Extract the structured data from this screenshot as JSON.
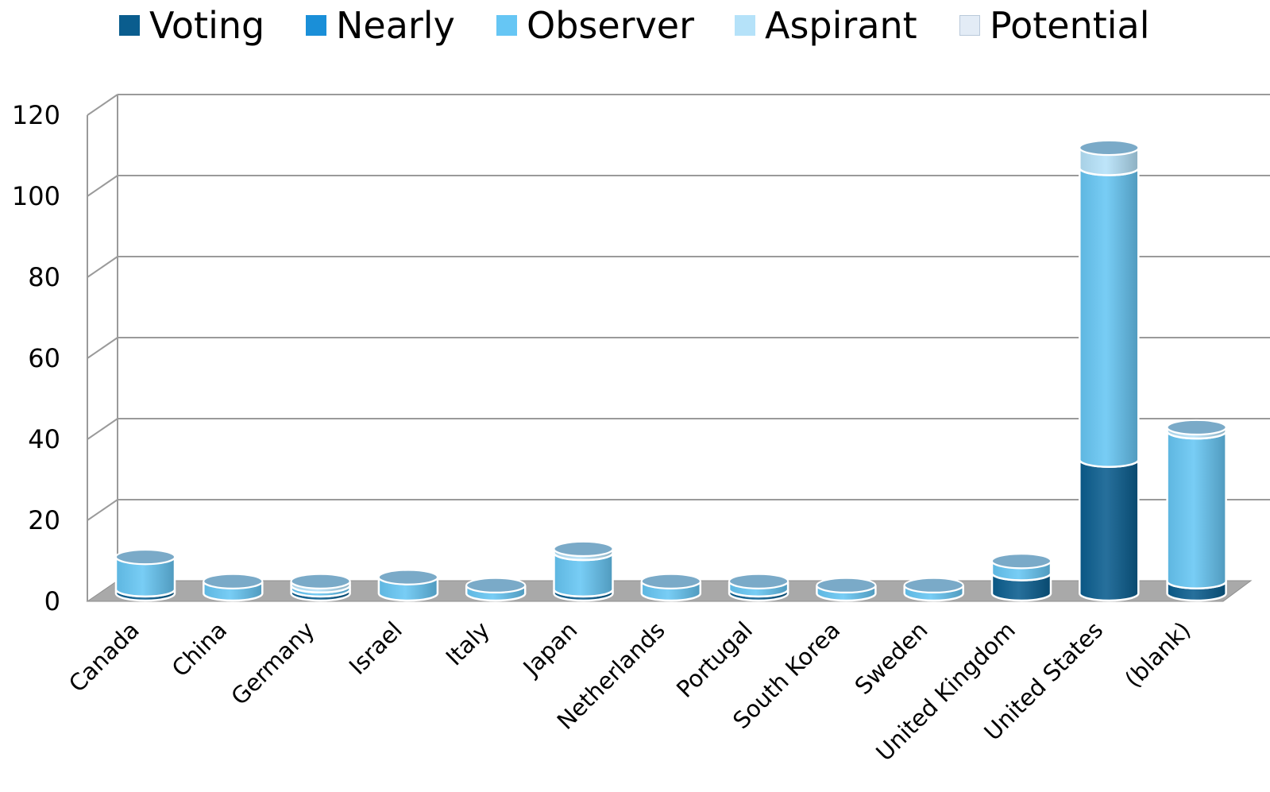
{
  "chart_data": {
    "type": "bar",
    "stacked": true,
    "three_d": true,
    "title": "",
    "xlabel": "",
    "ylabel": "",
    "ylim": [
      0,
      120
    ],
    "yticks": [
      "0",
      "20",
      "40",
      "60",
      "80",
      "100",
      "120"
    ],
    "grid": true,
    "legend_position": "top",
    "categories": [
      "Canada",
      "China",
      "Germany",
      "Israel",
      "Italy",
      "Japan",
      "Netherlands",
      "Portugal",
      "South Korea",
      "Sweden",
      "United Kingdom",
      "United States",
      "(blank)"
    ],
    "series": [
      {
        "name": "Voting",
        "color": "#0a5d8e",
        "values": [
          1,
          0,
          1,
          0,
          0,
          1,
          0,
          1,
          0,
          0,
          5,
          33,
          3
        ]
      },
      {
        "name": "Nearly",
        "color": "#1a8fd8",
        "values": [
          0,
          0,
          0,
          0,
          0,
          0,
          0,
          0,
          0,
          0,
          0,
          0,
          0
        ]
      },
      {
        "name": "Observer",
        "color": "#66c6f4",
        "values": [
          8,
          3,
          1,
          4,
          2,
          9,
          3,
          2,
          2,
          2,
          3,
          72,
          37
        ]
      },
      {
        "name": "Aspirant",
        "color": "#b5e2f9",
        "values": [
          0,
          0,
          1,
          0,
          0,
          1,
          0,
          0,
          0,
          0,
          0,
          5,
          1
        ]
      },
      {
        "name": "Potential",
        "color": "#e3ecf6",
        "values": [
          0,
          0,
          0,
          0,
          0,
          0,
          0,
          0,
          0,
          0,
          0,
          0,
          0
        ]
      }
    ]
  }
}
